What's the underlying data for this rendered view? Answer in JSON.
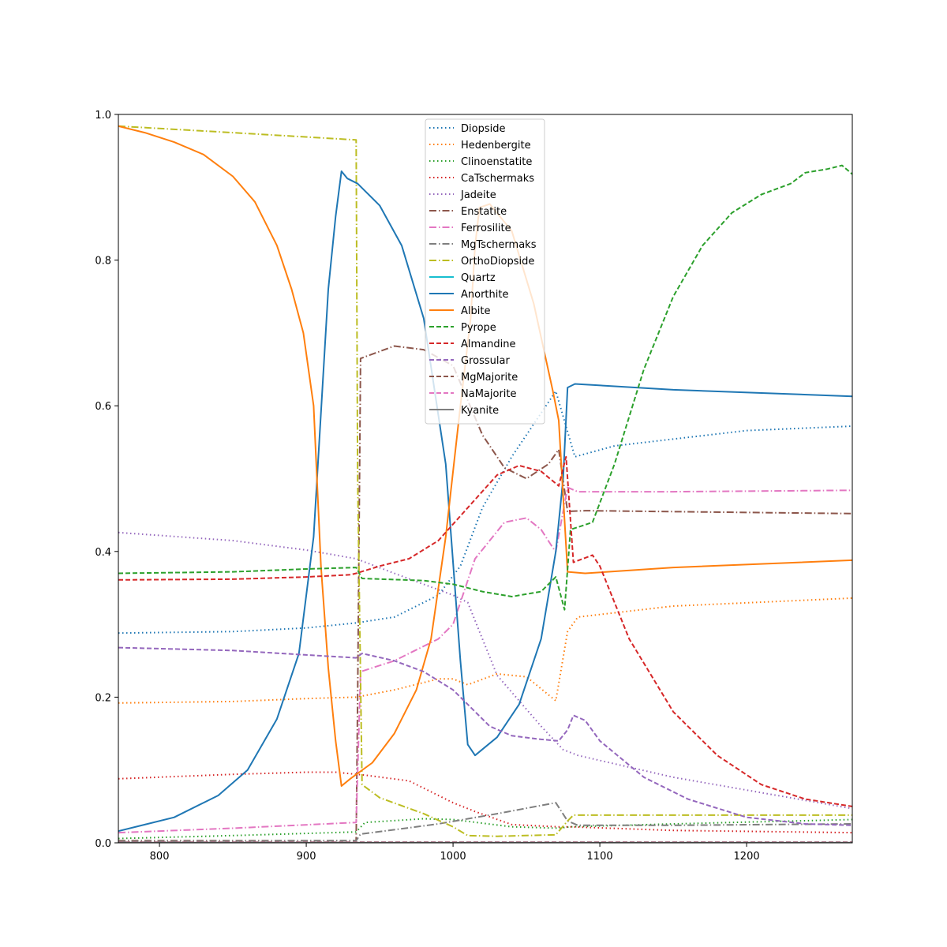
{
  "chart_data": {
    "type": "line",
    "title": "",
    "xlabel": "",
    "ylabel": "",
    "xlim": [
      772,
      1272
    ],
    "ylim": [
      0,
      1
    ],
    "x_ticks": [
      800,
      900,
      1000,
      1100,
      1200
    ],
    "y_ticks": [
      0.0,
      0.2,
      0.4,
      0.6,
      0.8,
      1.0
    ],
    "x_tick_labels": [
      "800",
      "900",
      "1000",
      "1100",
      "1200"
    ],
    "y_tick_labels": [
      "0.0",
      "0.2",
      "0.4",
      "0.6",
      "0.8",
      "1.0"
    ],
    "grid": false,
    "legend_position": "upper-center",
    "series": [
      {
        "name": "Diopside",
        "color": "#1f77b4",
        "dash": "dotted",
        "points": [
          [
            772,
            0.288
          ],
          [
            850,
            0.29
          ],
          [
            900,
            0.295
          ],
          [
            934,
            0.302
          ],
          [
            960,
            0.31
          ],
          [
            990,
            0.34
          ],
          [
            1005,
            0.38
          ],
          [
            1020,
            0.46
          ],
          [
            1040,
            0.53
          ],
          [
            1070,
            0.62
          ],
          [
            1083,
            0.53
          ],
          [
            1110,
            0.545
          ],
          [
            1200,
            0.566
          ],
          [
            1272,
            0.572
          ]
        ]
      },
      {
        "name": "Hedenbergite",
        "color": "#ff7f0e",
        "dash": "dotted",
        "points": [
          [
            772,
            0.192
          ],
          [
            850,
            0.194
          ],
          [
            900,
            0.198
          ],
          [
            934,
            0.2
          ],
          [
            960,
            0.21
          ],
          [
            990,
            0.225
          ],
          [
            1000,
            0.225
          ],
          [
            1010,
            0.217
          ],
          [
            1030,
            0.232
          ],
          [
            1050,
            0.228
          ],
          [
            1070,
            0.195
          ],
          [
            1078,
            0.29
          ],
          [
            1085,
            0.31
          ],
          [
            1150,
            0.325
          ],
          [
            1272,
            0.336
          ]
        ]
      },
      {
        "name": "Clinoenstatite",
        "color": "#2ca02c",
        "dash": "dotted",
        "points": [
          [
            772,
            0.006
          ],
          [
            850,
            0.01
          ],
          [
            934,
            0.015
          ],
          [
            940,
            0.028
          ],
          [
            980,
            0.033
          ],
          [
            1000,
            0.032
          ],
          [
            1040,
            0.022
          ],
          [
            1072,
            0.02
          ],
          [
            1080,
            0.022
          ],
          [
            1150,
            0.026
          ],
          [
            1272,
            0.032
          ]
        ]
      },
      {
        "name": "CaTschermaks",
        "color": "#d62728",
        "dash": "dotted",
        "points": [
          [
            772,
            0.088
          ],
          [
            850,
            0.094
          ],
          [
            900,
            0.097
          ],
          [
            920,
            0.097
          ],
          [
            940,
            0.093
          ],
          [
            970,
            0.085
          ],
          [
            1000,
            0.055
          ],
          [
            1015,
            0.043
          ],
          [
            1040,
            0.025
          ],
          [
            1072,
            0.022
          ],
          [
            1080,
            0.022
          ],
          [
            1150,
            0.017
          ],
          [
            1272,
            0.014
          ]
        ]
      },
      {
        "name": "Jadeite",
        "color": "#9467bd",
        "dash": "dotted",
        "points": [
          [
            772,
            0.426
          ],
          [
            850,
            0.415
          ],
          [
            900,
            0.402
          ],
          [
            934,
            0.39
          ],
          [
            960,
            0.37
          ],
          [
            1000,
            0.34
          ],
          [
            1010,
            0.33
          ],
          [
            1030,
            0.23
          ],
          [
            1060,
            0.16
          ],
          [
            1075,
            0.128
          ],
          [
            1085,
            0.12
          ],
          [
            1150,
            0.09
          ],
          [
            1272,
            0.047
          ]
        ]
      },
      {
        "name": "Enstatite",
        "color": "#8c564b",
        "dash": "dashdot",
        "points": [
          [
            772,
            0.003
          ],
          [
            934,
            0.003
          ],
          [
            935,
            0.2
          ],
          [
            937,
            0.665
          ],
          [
            960,
            0.682
          ],
          [
            980,
            0.677
          ],
          [
            1000,
            0.655
          ],
          [
            1020,
            0.56
          ],
          [
            1035,
            0.515
          ],
          [
            1050,
            0.5
          ],
          [
            1065,
            0.52
          ],
          [
            1072,
            0.54
          ],
          [
            1078,
            0.455
          ],
          [
            1090,
            0.456
          ],
          [
            1272,
            0.452
          ]
        ]
      },
      {
        "name": "Ferrosilite",
        "color": "#e377c2",
        "dash": "dashdot",
        "points": [
          [
            772,
            0.014
          ],
          [
            850,
            0.02
          ],
          [
            934,
            0.028
          ],
          [
            937,
            0.235
          ],
          [
            960,
            0.25
          ],
          [
            990,
            0.28
          ],
          [
            1000,
            0.3
          ],
          [
            1015,
            0.39
          ],
          [
            1035,
            0.44
          ],
          [
            1050,
            0.446
          ],
          [
            1060,
            0.43
          ],
          [
            1068,
            0.405
          ],
          [
            1070,
            0.4
          ],
          [
            1078,
            0.488
          ],
          [
            1085,
            0.482
          ],
          [
            1150,
            0.482
          ],
          [
            1272,
            0.484
          ]
        ]
      },
      {
        "name": "MgTschermaks",
        "color": "#7f7f7f",
        "dash": "dashdot",
        "points": [
          [
            772,
            0.002
          ],
          [
            934,
            0.003
          ],
          [
            937,
            0.012
          ],
          [
            960,
            0.018
          ],
          [
            990,
            0.026
          ],
          [
            1030,
            0.04
          ],
          [
            1070,
            0.055
          ],
          [
            1078,
            0.03
          ],
          [
            1085,
            0.024
          ],
          [
            1150,
            0.024
          ],
          [
            1272,
            0.026
          ]
        ]
      },
      {
        "name": "OrthoDiopside",
        "color": "#bcbd22",
        "dash": "dashdot",
        "points": [
          [
            772,
            0.984
          ],
          [
            850,
            0.975
          ],
          [
            934,
            0.965
          ],
          [
            935,
            0.5
          ],
          [
            938,
            0.08
          ],
          [
            950,
            0.062
          ],
          [
            980,
            0.04
          ],
          [
            1000,
            0.022
          ],
          [
            1010,
            0.01
          ],
          [
            1030,
            0.009
          ],
          [
            1070,
            0.011
          ],
          [
            1078,
            0.03
          ],
          [
            1082,
            0.038
          ],
          [
            1272,
            0.038
          ]
        ]
      },
      {
        "name": "Quartz",
        "color": "#17becf",
        "dash": "solid",
        "points": [
          [
            772,
            0.0
          ],
          [
            1272,
            0.0
          ]
        ]
      },
      {
        "name": "Anorthite",
        "color": "#1f77b4",
        "dash": "solid",
        "points": [
          [
            772,
            0.016
          ],
          [
            790,
            0.025
          ],
          [
            810,
            0.035
          ],
          [
            840,
            0.065
          ],
          [
            860,
            0.1
          ],
          [
            880,
            0.17
          ],
          [
            895,
            0.26
          ],
          [
            905,
            0.42
          ],
          [
            915,
            0.76
          ],
          [
            920,
            0.86
          ],
          [
            924,
            0.922
          ],
          [
            928,
            0.912
          ],
          [
            935,
            0.905
          ],
          [
            950,
            0.875
          ],
          [
            965,
            0.82
          ],
          [
            980,
            0.72
          ],
          [
            995,
            0.52
          ],
          [
            1005,
            0.25
          ],
          [
            1010,
            0.135
          ],
          [
            1015,
            0.12
          ],
          [
            1030,
            0.145
          ],
          [
            1045,
            0.19
          ],
          [
            1060,
            0.28
          ],
          [
            1070,
            0.4
          ],
          [
            1075,
            0.5
          ],
          [
            1078,
            0.625
          ],
          [
            1083,
            0.63
          ],
          [
            1150,
            0.622
          ],
          [
            1272,
            0.613
          ]
        ]
      },
      {
        "name": "Albite",
        "color": "#ff7f0e",
        "dash": "solid",
        "points": [
          [
            772,
            0.984
          ],
          [
            790,
            0.975
          ],
          [
            810,
            0.962
          ],
          [
            830,
            0.945
          ],
          [
            850,
            0.915
          ],
          [
            865,
            0.88
          ],
          [
            880,
            0.82
          ],
          [
            890,
            0.76
          ],
          [
            898,
            0.7
          ],
          [
            905,
            0.6
          ],
          [
            910,
            0.38
          ],
          [
            915,
            0.24
          ],
          [
            920,
            0.14
          ],
          [
            924,
            0.078
          ],
          [
            930,
            0.088
          ],
          [
            945,
            0.11
          ],
          [
            960,
            0.15
          ],
          [
            975,
            0.21
          ],
          [
            985,
            0.28
          ],
          [
            995,
            0.42
          ],
          [
            1005,
            0.6
          ],
          [
            1012,
            0.72
          ],
          [
            1015,
            0.82
          ],
          [
            1018,
            0.872
          ],
          [
            1025,
            0.877
          ],
          [
            1040,
            0.84
          ],
          [
            1055,
            0.74
          ],
          [
            1068,
            0.62
          ],
          [
            1072,
            0.58
          ],
          [
            1078,
            0.372
          ],
          [
            1090,
            0.37
          ],
          [
            1150,
            0.378
          ],
          [
            1272,
            0.388
          ]
        ]
      },
      {
        "name": "Pyrope",
        "color": "#2ca02c",
        "dash": "dashed",
        "points": [
          [
            772,
            0.37
          ],
          [
            850,
            0.372
          ],
          [
            900,
            0.376
          ],
          [
            934,
            0.378
          ],
          [
            938,
            0.363
          ],
          [
            980,
            0.36
          ],
          [
            1000,
            0.355
          ],
          [
            1020,
            0.345
          ],
          [
            1040,
            0.338
          ],
          [
            1060,
            0.345
          ],
          [
            1070,
            0.365
          ],
          [
            1076,
            0.32
          ],
          [
            1080,
            0.43
          ],
          [
            1095,
            0.44
          ],
          [
            1110,
            0.52
          ],
          [
            1130,
            0.65
          ],
          [
            1150,
            0.75
          ],
          [
            1170,
            0.82
          ],
          [
            1190,
            0.865
          ],
          [
            1210,
            0.89
          ],
          [
            1230,
            0.905
          ],
          [
            1240,
            0.92
          ],
          [
            1255,
            0.925
          ],
          [
            1265,
            0.93
          ],
          [
            1272,
            0.918
          ]
        ]
      },
      {
        "name": "Almandine",
        "color": "#d62728",
        "dash": "dashed",
        "points": [
          [
            772,
            0.361
          ],
          [
            850,
            0.362
          ],
          [
            900,
            0.365
          ],
          [
            930,
            0.368
          ],
          [
            934,
            0.37
          ],
          [
            950,
            0.38
          ],
          [
            970,
            0.39
          ],
          [
            990,
            0.415
          ],
          [
            1010,
            0.46
          ],
          [
            1030,
            0.505
          ],
          [
            1045,
            0.518
          ],
          [
            1060,
            0.51
          ],
          [
            1072,
            0.49
          ],
          [
            1077,
            0.53
          ],
          [
            1082,
            0.385
          ],
          [
            1095,
            0.395
          ],
          [
            1100,
            0.38
          ],
          [
            1120,
            0.28
          ],
          [
            1150,
            0.18
          ],
          [
            1180,
            0.12
          ],
          [
            1210,
            0.08
          ],
          [
            1240,
            0.06
          ],
          [
            1272,
            0.05
          ]
        ]
      },
      {
        "name": "Grossular",
        "color": "#9467bd",
        "dash": "dashed",
        "points": [
          [
            772,
            0.268
          ],
          [
            850,
            0.264
          ],
          [
            900,
            0.258
          ],
          [
            934,
            0.254
          ],
          [
            938,
            0.26
          ],
          [
            960,
            0.25
          ],
          [
            980,
            0.235
          ],
          [
            1000,
            0.21
          ],
          [
            1010,
            0.19
          ],
          [
            1025,
            0.16
          ],
          [
            1040,
            0.147
          ],
          [
            1060,
            0.142
          ],
          [
            1072,
            0.14
          ],
          [
            1078,
            0.155
          ],
          [
            1082,
            0.175
          ],
          [
            1090,
            0.168
          ],
          [
            1100,
            0.14
          ],
          [
            1130,
            0.09
          ],
          [
            1160,
            0.06
          ],
          [
            1200,
            0.035
          ],
          [
            1240,
            0.026
          ],
          [
            1272,
            0.024
          ]
        ]
      },
      {
        "name": "MgMajorite",
        "color": "#8c564b",
        "dash": "dashed",
        "points": [
          [
            772,
            0.001
          ],
          [
            1272,
            0.001
          ]
        ]
      },
      {
        "name": "NaMajorite",
        "color": "#e377c2",
        "dash": "dashed",
        "points": [
          [
            772,
            0.0005
          ],
          [
            1272,
            0.0005
          ]
        ]
      },
      {
        "name": "Kyanite",
        "color": "#7f7f7f",
        "dash": "solid",
        "points": [
          [
            772,
            0.0002
          ],
          [
            1272,
            0.0002
          ]
        ]
      }
    ]
  }
}
